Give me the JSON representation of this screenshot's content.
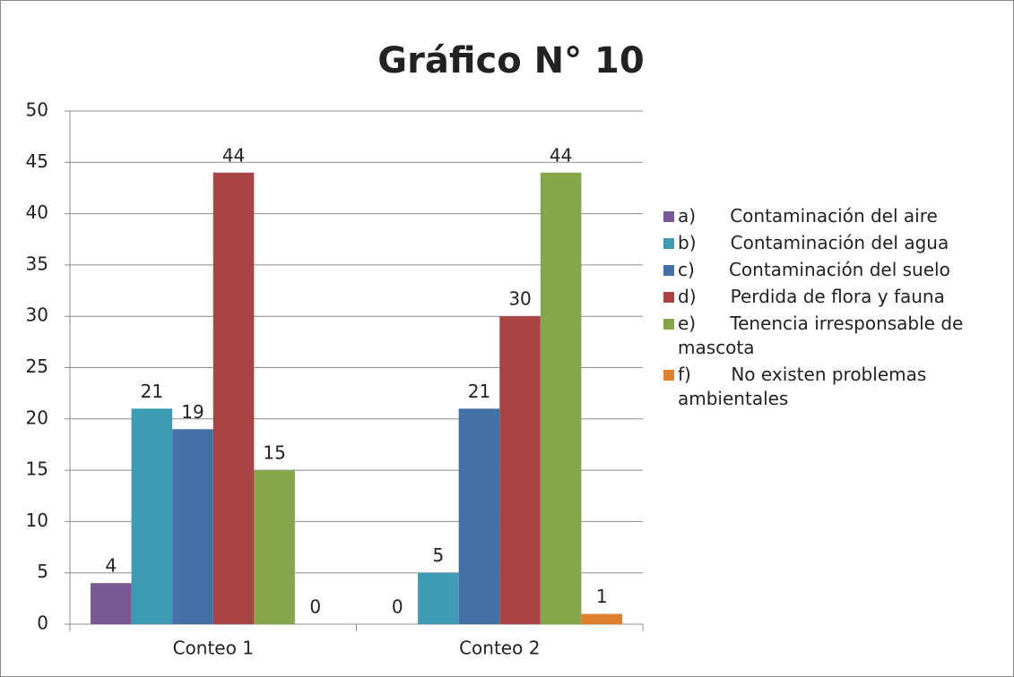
{
  "chart_data": {
    "type": "bar",
    "title": "Gráfico N° 10",
    "categories": [
      "Conteo 1",
      "Conteo 2"
    ],
    "series": [
      {
        "name": "a)      Contaminación del aire",
        "color": "#7a5a96",
        "values": [
          4,
          0
        ]
      },
      {
        "name": "b)      Contaminación del agua",
        "color": "#3f9bb3",
        "values": [
          21,
          5
        ]
      },
      {
        "name": "c)      Contaminación del suelo",
        "color": "#4471a6",
        "values": [
          19,
          21
        ]
      },
      {
        "name": "d)      Perdida de flora y fauna",
        "color": "#a84444",
        "values": [
          44,
          30
        ]
      },
      {
        "name": "e)      Tenencia irresponsable de mascota",
        "color": "#86a64a",
        "values": [
          15,
          44
        ]
      },
      {
        "name": "f)       No existen problemas ambientales",
        "color": "#e07f30",
        "values": [
          0,
          1
        ]
      }
    ],
    "ylim": [
      0,
      50
    ],
    "yticks": [
      0,
      5,
      10,
      15,
      20,
      25,
      30,
      35,
      40,
      45,
      50
    ],
    "grid": true,
    "legend": "right"
  }
}
